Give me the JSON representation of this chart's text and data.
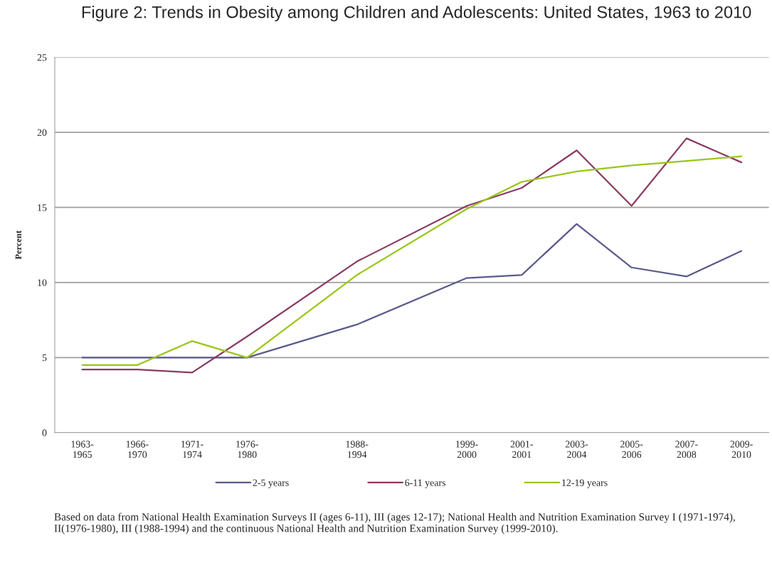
{
  "chart_data": {
    "type": "line",
    "title": "Figure 2: Trends in Obesity among Children and Adolescents: United States, 1963 to 2010",
    "ylabel": "Percent",
    "categories": [
      "1963-\n1965",
      "1966-\n1970",
      "1971-\n1974",
      "1976-\n1980",
      null,
      "1988-\n1994",
      null,
      "1999-\n2000",
      "2001-\n2001",
      "2003-\n2004",
      "2005-\n2006",
      "2007-\n2008",
      "2009-\n2010"
    ],
    "ylim": [
      0,
      25
    ],
    "yticks": [
      0,
      5,
      10,
      15,
      20,
      25
    ],
    "grid": "y",
    "legend": "bottom",
    "marker": "none",
    "line_style": "solid",
    "series": [
      {
        "name": "2-5 years",
        "color": "#5a5a8c",
        "values": [
          5.0,
          5.0,
          5.0,
          5.0,
          null,
          7.2,
          null,
          10.3,
          10.5,
          13.9,
          11.0,
          10.4,
          12.1
        ]
      },
      {
        "name": "6-11 years",
        "color": "#8b3a62",
        "values": [
          4.2,
          4.2,
          4.0,
          6.4,
          null,
          11.4,
          null,
          15.1,
          16.3,
          18.8,
          15.1,
          19.6,
          18.0
        ]
      },
      {
        "name": "12-19 years",
        "color": "#99c61a",
        "values": [
          4.5,
          4.5,
          6.1,
          5.0,
          null,
          10.5,
          null,
          14.9,
          16.7,
          17.4,
          17.8,
          18.1,
          18.4
        ]
      }
    ],
    "annotations": [
      "Based on data from National Health Examination Surveys II (ages 6-11), III (ages 12-17); National Health and Nutrition Examination Survey I (1971-1974), II(1976-1980), III (1988-1994) and the continuous National Health and Nutrition Examination Survey (1999-2010)."
    ]
  }
}
